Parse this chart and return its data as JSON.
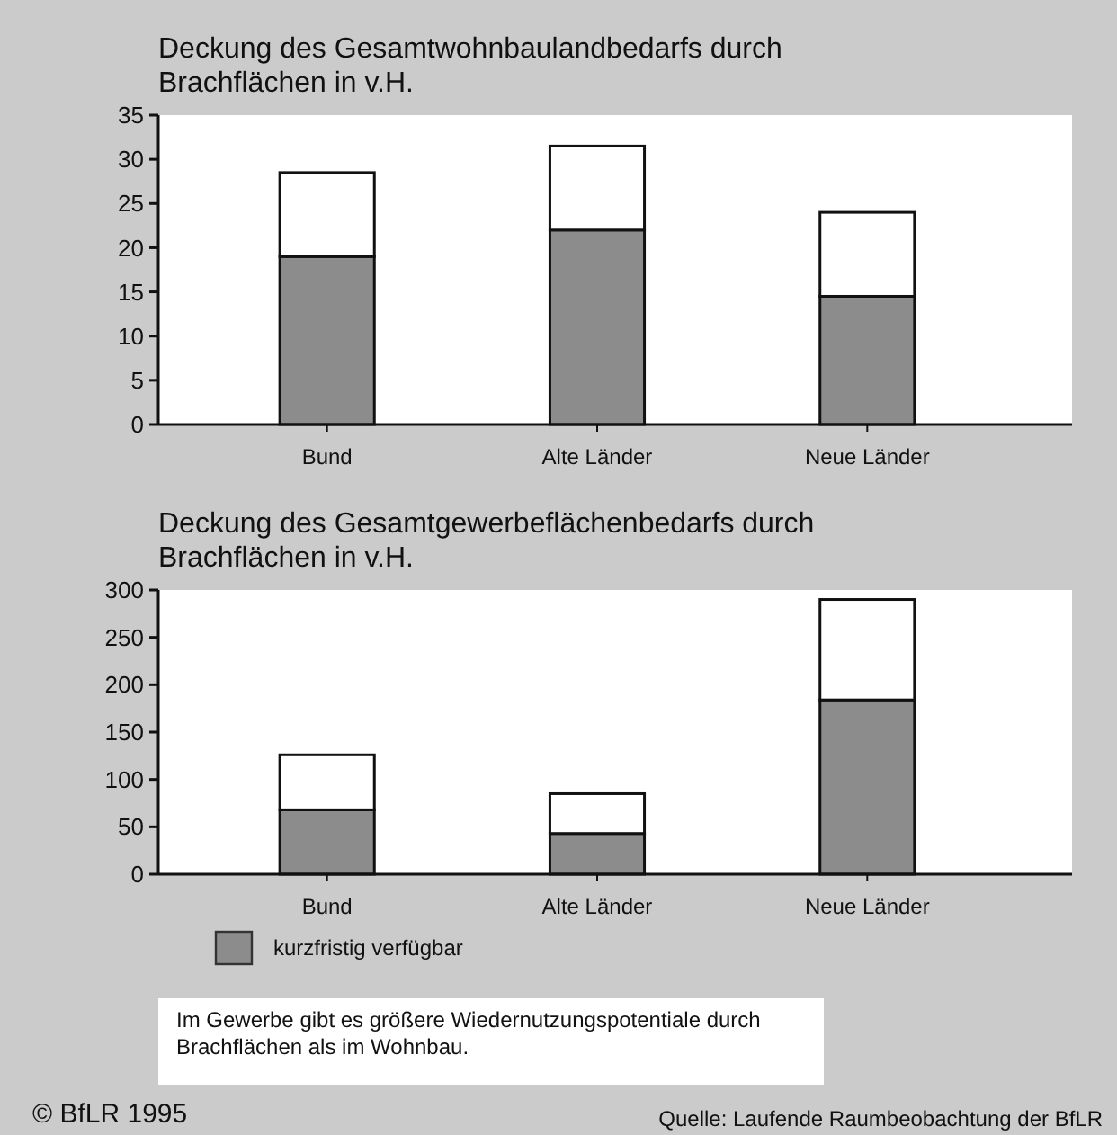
{
  "chart_data": [
    {
      "type": "bar",
      "title": "Deckung des Gesamtwohnbaulandbedarfs durch Brachflächen in v.H.",
      "categories": [
        "Bund",
        "Alte Länder",
        "Neue Länder"
      ],
      "stacked": true,
      "series": [
        {
          "color": "#8c8c8c",
          "values": [
            19,
            22,
            14.5
          ]
        },
        {
          "color": "#ffffff",
          "values": [
            9.5,
            9.5,
            9.5
          ]
        }
      ],
      "ylim": [
        0,
        35
      ],
      "yticks": [
        0,
        5,
        10,
        15,
        20,
        25,
        30,
        35
      ],
      "grid": false,
      "legend": false
    },
    {
      "type": "bar",
      "title": "Deckung des Gesamtgewerbeflächenbedarfs durch Brachflächen in v.H.",
      "categories": [
        "Bund",
        "Alte Länder",
        "Neue Länder"
      ],
      "stacked": true,
      "series": [
        {
          "name": "kurzfristig verfügbar",
          "color": "#8c8c8c",
          "values": [
            68,
            43,
            184
          ]
        },
        {
          "color": "#ffffff",
          "values": [
            58,
            42,
            106
          ]
        }
      ],
      "ylim": [
        0,
        300
      ],
      "yticks": [
        0,
        50,
        100,
        150,
        200,
        250,
        300
      ],
      "grid": false,
      "legend": "bottom left",
      "annotations": [
        "Im Gewerbe gibt es größere Wiedernutzungspotentiale durch Brachflächen als im Wohnbau.",
        "© BfLR 1995",
        "Quelle: Laufende Raumbeobachtung der BfLR"
      ]
    }
  ]
}
